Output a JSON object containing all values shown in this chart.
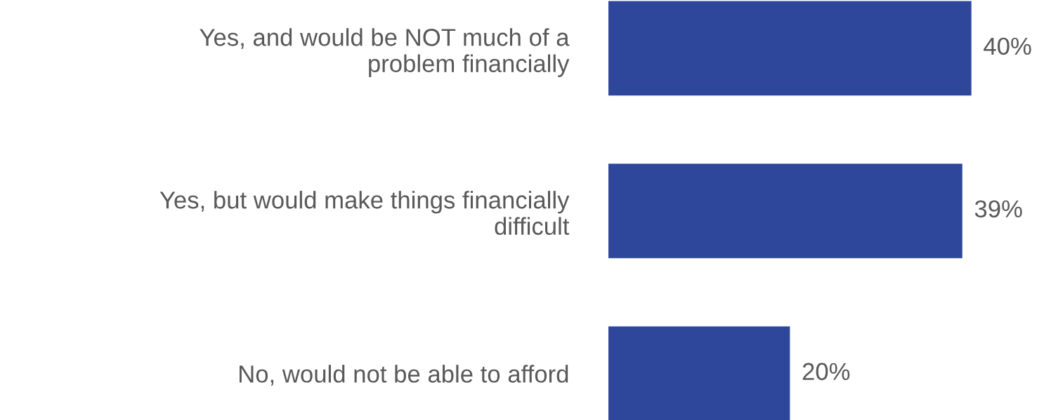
{
  "chart_data": {
    "type": "bar",
    "orientation": "horizontal",
    "categories": [
      "Yes, and would be NOT much of a\nproblem financially",
      "Yes, but would make things financially\ndifficult",
      "No, would not be able to afford"
    ],
    "values": [
      40,
      39,
      20
    ],
    "value_labels": [
      "40%",
      "39%",
      "20%"
    ],
    "color": "#2f479b"
  }
}
